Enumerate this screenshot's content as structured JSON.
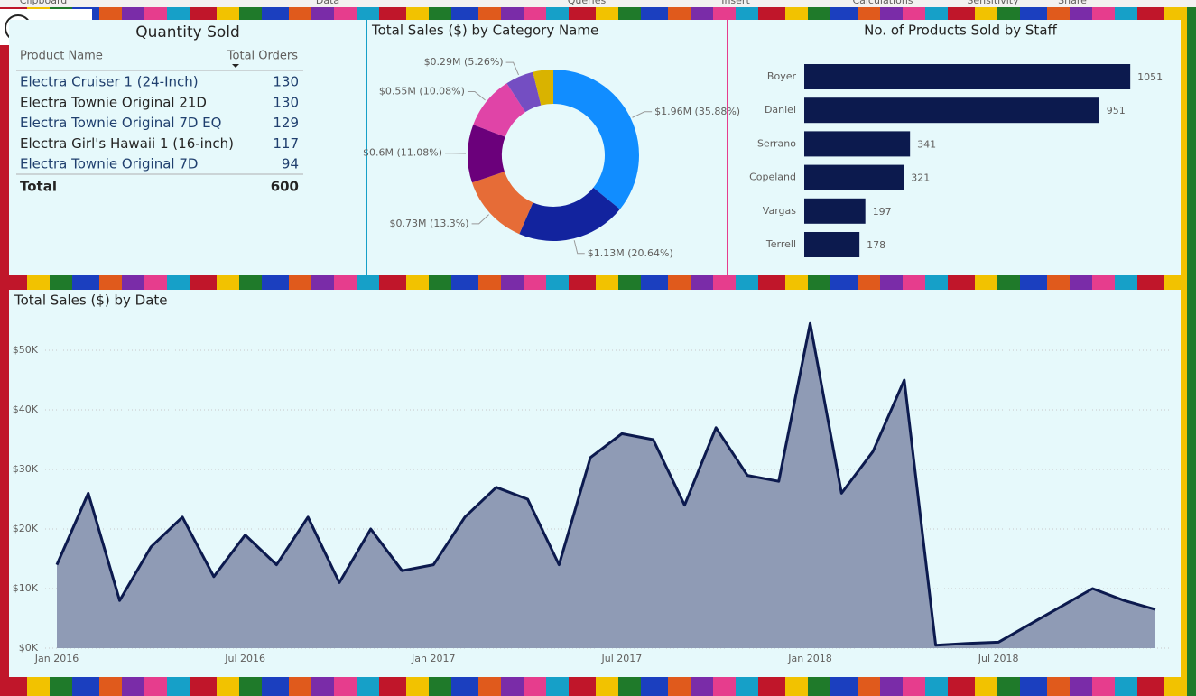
{
  "ribbon": [
    "Clipboard",
    "Data",
    "Queries",
    "Insert",
    "Calculations",
    "Sensitivity",
    "Share"
  ],
  "table": {
    "title": "Quantity Sold",
    "columns": [
      "Product Name",
      "Total Orders"
    ],
    "rows": [
      [
        "Electra Cruiser 1 (24-Inch)",
        130
      ],
      [
        "Electra Townie Original 21D",
        130
      ],
      [
        "Electra Townie Original 7D EQ",
        129
      ],
      [
        "Electra Girl's Hawaii 1 (16-inch)",
        117
      ],
      [
        "Electra Townie Original 7D",
        94
      ]
    ],
    "total": [
      "Total",
      600
    ]
  },
  "chart_data": [
    {
      "type": "donut",
      "title": "Total Sales ($) by Category Name",
      "values": [
        1.96,
        1.13,
        0.73,
        0.6,
        0.55,
        0.29,
        0.21
      ],
      "value_labels": [
        "$1.96M (35.88%)",
        "$1.13M (20.64%)",
        "$0.73M (13.3%)",
        "$0.6M (11.08%)",
        "$0.55M (10.08%)",
        "$0.29M (5.26%)",
        null
      ],
      "colors": [
        "#118dff",
        "#12239e",
        "#e66c37",
        "#6b007b",
        "#e044a7",
        "#744ec2",
        "#d9b300"
      ]
    },
    {
      "type": "hbar",
      "title": "No. of Products Sold by Staff",
      "categories": [
        "Boyer",
        "Daniel",
        "Serrano",
        "Copeland",
        "Vargas",
        "Terrell"
      ],
      "values": [
        1051,
        951,
        341,
        321,
        197,
        178
      ],
      "color": "#0c1a4e",
      "xlim": [
        0,
        1100
      ]
    },
    {
      "type": "area",
      "title": "Total Sales ($) by Date",
      "x": [
        "2016-01",
        "2016-02",
        "2016-03",
        "2016-04",
        "2016-05",
        "2016-06",
        "2016-07",
        "2016-08",
        "2016-09",
        "2016-10",
        "2016-11",
        "2016-12",
        "2017-01",
        "2017-02",
        "2017-03",
        "2017-04",
        "2017-05",
        "2017-06",
        "2017-07",
        "2017-08",
        "2017-09",
        "2017-10",
        "2017-11",
        "2017-12",
        "2018-01",
        "2018-02",
        "2018-03",
        "2018-04",
        "2018-05",
        "2018-06",
        "2018-07",
        "2018-08",
        "2018-09",
        "2018-10",
        "2018-11",
        "2018-12"
      ],
      "values": [
        14000,
        26000,
        8000,
        17000,
        22000,
        12000,
        19000,
        14000,
        22000,
        11000,
        20000,
        13000,
        14000,
        22000,
        27000,
        25000,
        14000,
        32000,
        36000,
        35000,
        24000,
        37000,
        29000,
        28000,
        54500,
        26000,
        33000,
        45000,
        500,
        800,
        1000,
        4000,
        7000,
        10000,
        8000,
        6500
      ],
      "color": "#0c1a4e",
      "fill": "#8f9bb5",
      "xlim": [
        "2016-01",
        "2018-12"
      ],
      "xticks": [
        {
          "value": "2016-01",
          "label": "Jan 2016"
        },
        {
          "value": "2016-07",
          "label": "Jul 2016"
        },
        {
          "value": "2017-01",
          "label": "Jan 2017"
        },
        {
          "value": "2017-07",
          "label": "Jul 2017"
        },
        {
          "value": "2018-01",
          "label": "Jan 2018"
        },
        {
          "value": "2018-07",
          "label": "Jul 2018"
        }
      ],
      "ylim": [
        0,
        55000
      ],
      "yticks": [
        {
          "value": 0,
          "label": "$0K"
        },
        {
          "value": 10000,
          "label": "$10K"
        },
        {
          "value": 20000,
          "label": "$20K"
        },
        {
          "value": 30000,
          "label": "$30K"
        },
        {
          "value": 40000,
          "label": "$40K"
        },
        {
          "value": 50000,
          "label": "$50K"
        }
      ],
      "grid": true
    }
  ]
}
